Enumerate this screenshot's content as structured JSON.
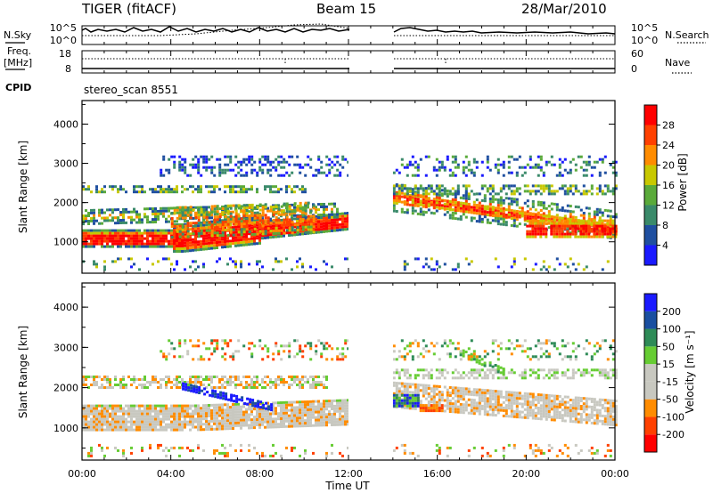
{
  "header": {
    "station": "TIGER (fitACF)",
    "beam": "Beam 15",
    "date": "28/Mar/2010"
  },
  "strip_panels": {
    "nsky_label": "N.Sky",
    "nsearch_label": "N.Search",
    "freq_label_line1": "Freq.",
    "freq_label_line2": "[MHz]",
    "nave_label": "Nave",
    "cpid_label": "CPID",
    "cpid_value": "stereo_scan 8551",
    "noise_ticks_left": [
      "10^5",
      "10^0"
    ],
    "noise_ticks_right": [
      "10^5",
      "10^0"
    ],
    "freq_ticks": [
      "18",
      "8"
    ],
    "nave_ticks": [
      "60",
      "0"
    ]
  },
  "colors": {
    "power_scale": [
      "#1a1aff",
      "#1f4fa0",
      "#3a8a6a",
      "#5aaa3a",
      "#c8c800",
      "#ff8c00",
      "#ff4000",
      "#ff0000"
    ],
    "velocity_scale": [
      "#ff0000",
      "#ff4000",
      "#ff8c00",
      "#c8c8c0",
      "#c8c8c0",
      "#66cc33",
      "#2e8b57",
      "#1a4fa0",
      "#1a1aff"
    ]
  },
  "chart_data": [
    {
      "type": "heatmap",
      "panel": "power",
      "ylabel": "Slant Range [km]",
      "x_range_hours": [
        0,
        24
      ],
      "ylim": [
        200,
        4600
      ],
      "yticks": [
        "1000",
        "2000",
        "3000",
        "4000"
      ],
      "data_gap_hours": [
        12,
        14
      ],
      "colorbar_label": "Power [dB]",
      "colorbar_ticks": [
        "4",
        "8",
        "12",
        "16",
        "20",
        "24",
        "28"
      ]
    },
    {
      "type": "heatmap",
      "panel": "velocity",
      "ylabel": "Slant Range [km]",
      "xlabel": "Time UT",
      "x_range_hours": [
        0,
        24
      ],
      "ylim": [
        200,
        4600
      ],
      "yticks": [
        "1000",
        "2000",
        "3000",
        "4000"
      ],
      "xticks": [
        "00:00",
        "04:00",
        "08:00",
        "12:00",
        "16:00",
        "20:00",
        "00:00"
      ],
      "data_gap_hours": [
        12,
        14
      ],
      "colorbar_label": "Velocity [m s⁻¹]",
      "colorbar_ticks": [
        "200",
        "100",
        "50",
        "15",
        "-15",
        "-50",
        "-100",
        "-200"
      ]
    }
  ]
}
